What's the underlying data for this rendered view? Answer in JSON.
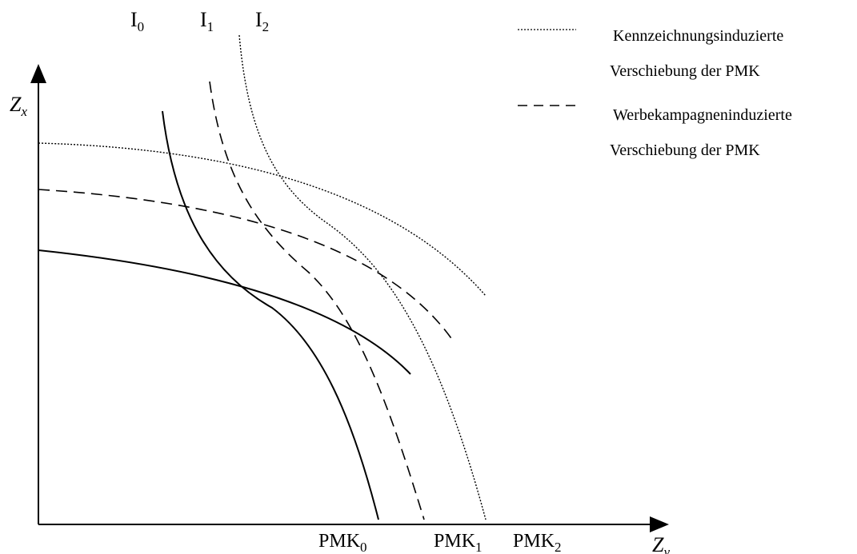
{
  "indifference_curves": [
    {
      "label": "I",
      "sub": "0",
      "style": "solid"
    },
    {
      "label": "I",
      "sub": "1",
      "style": "dashed"
    },
    {
      "label": "I",
      "sub": "2",
      "style": "dotted"
    }
  ],
  "ppf_curves": [
    {
      "label": "PMK",
      "sub": "0",
      "style": "solid"
    },
    {
      "label": "PMK",
      "sub": "1",
      "style": "dashed"
    },
    {
      "label": "PMK",
      "sub": "2",
      "style": "dotted"
    }
  ],
  "axes": {
    "y": {
      "label": "Z",
      "sub": "x"
    },
    "x": {
      "label": "Z",
      "sub": "y"
    }
  },
  "legend": [
    {
      "style": "dotted",
      "line1": "Kennzeichnungsinduzierte",
      "line2": "Verschiebung der PMK"
    },
    {
      "style": "dashed",
      "line1": "Werbekampagneninduzierte",
      "line2": "Verschiebung der PMK"
    }
  ]
}
